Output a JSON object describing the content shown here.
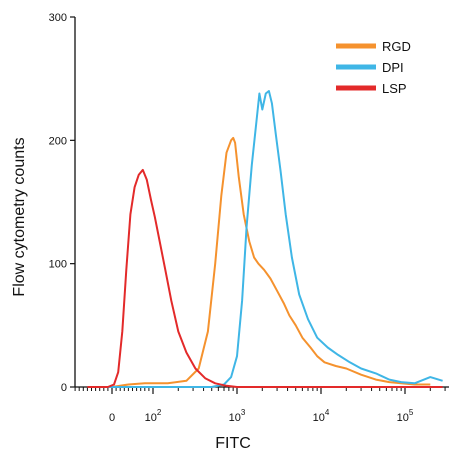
{
  "chart_data": {
    "type": "line",
    "title": "",
    "xlabel": "FITC",
    "ylabel": "Flow cytometry counts",
    "x_scale": "biexponential",
    "x_ticks": [
      {
        "base": "",
        "exp": "",
        "text": "0",
        "value": 0
      },
      {
        "base": "10",
        "exp": "2",
        "text": "",
        "value": 100
      },
      {
        "base": "10",
        "exp": "3",
        "text": "",
        "value": 1000
      },
      {
        "base": "10",
        "exp": "4",
        "text": "",
        "value": 10000
      },
      {
        "base": "10",
        "exp": "5",
        "text": "",
        "value": 100000
      }
    ],
    "y_ticks": [
      "0",
      "100",
      "200",
      "300"
    ],
    "ylim": [
      0,
      300
    ],
    "grid": false,
    "legend_position": "top-right",
    "series": [
      {
        "name": "RGD",
        "color": "#f5922e",
        "points": [
          [
            -60,
            0
          ],
          [
            0,
            0
          ],
          [
            40,
            2
          ],
          [
            80,
            3
          ],
          [
            150,
            3
          ],
          [
            250,
            5
          ],
          [
            350,
            15
          ],
          [
            450,
            45
          ],
          [
            550,
            100
          ],
          [
            650,
            155
          ],
          [
            750,
            190
          ],
          [
            850,
            200
          ],
          [
            900,
            202
          ],
          [
            950,
            198
          ],
          [
            1050,
            170
          ],
          [
            1200,
            140
          ],
          [
            1400,
            118
          ],
          [
            1600,
            105
          ],
          [
            1800,
            100
          ],
          [
            2100,
            95
          ],
          [
            2500,
            88
          ],
          [
            3000,
            78
          ],
          [
            3600,
            68
          ],
          [
            4200,
            58
          ],
          [
            5000,
            50
          ],
          [
            6000,
            40
          ],
          [
            7500,
            32
          ],
          [
            9000,
            25
          ],
          [
            11000,
            20
          ],
          [
            15000,
            17
          ],
          [
            20000,
            15
          ],
          [
            30000,
            10
          ],
          [
            45000,
            6
          ],
          [
            65000,
            4
          ],
          [
            90000,
            3
          ],
          [
            130000,
            2
          ],
          [
            200000,
            2
          ]
        ]
      },
      {
        "name": "DPI",
        "color": "#3fb6e6",
        "points": [
          [
            -60,
            0
          ],
          [
            0,
            0
          ],
          [
            200,
            0
          ],
          [
            500,
            0
          ],
          [
            700,
            2
          ],
          [
            850,
            8
          ],
          [
            1000,
            25
          ],
          [
            1150,
            70
          ],
          [
            1300,
            130
          ],
          [
            1500,
            180
          ],
          [
            1700,
            215
          ],
          [
            1850,
            238
          ],
          [
            2000,
            225
          ],
          [
            2200,
            238
          ],
          [
            2400,
            240
          ],
          [
            2600,
            230
          ],
          [
            2900,
            205
          ],
          [
            3300,
            175
          ],
          [
            3800,
            140
          ],
          [
            4500,
            105
          ],
          [
            5500,
            75
          ],
          [
            7000,
            55
          ],
          [
            9000,
            40
          ],
          [
            12000,
            32
          ],
          [
            16000,
            26
          ],
          [
            22000,
            20
          ],
          [
            30000,
            15
          ],
          [
            45000,
            11
          ],
          [
            65000,
            6
          ],
          [
            90000,
            4
          ],
          [
            130000,
            3
          ],
          [
            200000,
            8
          ],
          [
            280000,
            5
          ]
        ]
      },
      {
        "name": "LSP",
        "color": "#e32a2a",
        "points": [
          [
            -60,
            0
          ],
          [
            -10,
            0
          ],
          [
            5,
            2
          ],
          [
            15,
            12
          ],
          [
            25,
            45
          ],
          [
            35,
            95
          ],
          [
            45,
            140
          ],
          [
            55,
            162
          ],
          [
            65,
            172
          ],
          [
            75,
            176
          ],
          [
            85,
            168
          ],
          [
            95,
            152
          ],
          [
            105,
            138
          ],
          [
            120,
            118
          ],
          [
            140,
            95
          ],
          [
            165,
            70
          ],
          [
            200,
            45
          ],
          [
            250,
            28
          ],
          [
            320,
            15
          ],
          [
            420,
            7
          ],
          [
            550,
            3
          ],
          [
            750,
            1
          ],
          [
            1000,
            0
          ],
          [
            2000,
            0
          ],
          [
            280000,
            0
          ]
        ]
      }
    ]
  }
}
